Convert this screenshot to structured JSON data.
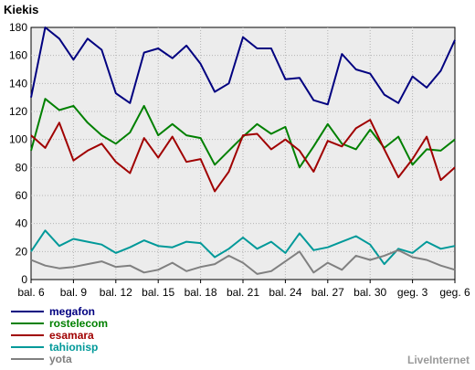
{
  "chart_data": {
    "type": "line",
    "title": "Kiekis",
    "xlabel": "",
    "ylabel": "",
    "ylim": [
      0,
      180
    ],
    "y_ticks": [
      0,
      20,
      40,
      60,
      80,
      100,
      120,
      140,
      160,
      180
    ],
    "grid": true,
    "legend_position": "bottom-left",
    "x_tick_labels": [
      "bal. 6",
      "bal. 9",
      "bal. 12",
      "bal. 15",
      "bal. 18",
      "bal. 21",
      "bal. 24",
      "bal. 27",
      "bal. 30",
      "geg. 3",
      "geg. 6"
    ],
    "x_tick_indices": [
      0,
      3,
      6,
      9,
      12,
      15,
      18,
      21,
      24,
      27,
      30
    ],
    "point_count": 31,
    "series": [
      {
        "name": "megafon",
        "color": "#000080",
        "values": [
          130,
          180,
          172,
          157,
          172,
          164,
          133,
          126,
          162,
          165,
          158,
          167,
          154,
          134,
          140,
          173,
          165,
          165,
          143,
          144,
          128,
          125,
          161,
          150,
          147,
          132,
          126,
          145,
          137,
          149,
          171
        ]
      },
      {
        "name": "rostelecom",
        "color": "#008000",
        "values": [
          92,
          129,
          121,
          124,
          112,
          103,
          97,
          105,
          124,
          103,
          111,
          103,
          101,
          82,
          92,
          102,
          111,
          104,
          109,
          80,
          95,
          111,
          97,
          93,
          107,
          94,
          102,
          82,
          93,
          92,
          100
        ]
      },
      {
        "name": "esamara",
        "color": "#a00000",
        "values": [
          103,
          94,
          112,
          85,
          92,
          97,
          84,
          76,
          101,
          87,
          102,
          84,
          86,
          63,
          77,
          103,
          104,
          93,
          100,
          92,
          77,
          99,
          95,
          108,
          114,
          93,
          73,
          86,
          102,
          71,
          80
        ]
      },
      {
        "name": "tahionisp",
        "color": "#009999",
        "values": [
          20,
          35,
          24,
          29,
          27,
          25,
          19,
          23,
          28,
          24,
          23,
          27,
          26,
          16,
          22,
          30,
          22,
          27,
          19,
          33,
          21,
          23,
          27,
          31,
          25,
          11,
          22,
          19,
          27,
          22,
          24
        ]
      },
      {
        "name": "yota",
        "color": "#808080",
        "values": [
          14,
          10,
          8,
          9,
          11,
          13,
          9,
          10,
          5,
          7,
          12,
          6,
          9,
          11,
          17,
          12,
          4,
          6,
          13,
          20,
          5,
          12,
          7,
          17,
          14,
          17,
          21,
          16,
          14,
          10,
          7
        ]
      }
    ]
  },
  "brand": "LiveInternet"
}
